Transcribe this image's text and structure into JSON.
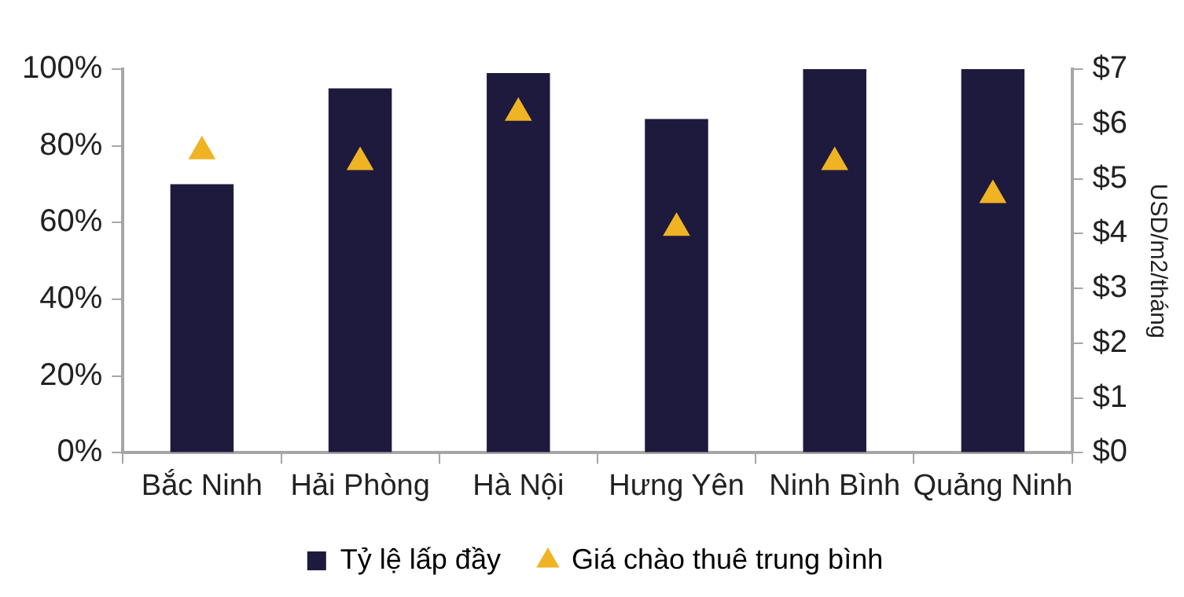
{
  "chart_data": {
    "type": "bar",
    "categories": [
      "Bắc Ninh",
      "Hải Phòng",
      "Hà Nội",
      "Hưng Yên",
      "Ninh Bình",
      "Quảng Ninh"
    ],
    "series": [
      {
        "name": "Tỷ lệ lấp đầy",
        "color": "#1e1a3e",
        "values": [
          70,
          95,
          99,
          87,
          100,
          100
        ]
      },
      {
        "name": "Giá chào thuê trung bình",
        "type": "scatter",
        "axis": "y2",
        "color": "#f0b323",
        "marker": "triangle",
        "values": [
          5.5,
          5.3,
          6.2,
          4.1,
          5.3,
          4.7
        ]
      }
    ],
    "ylim": [
      0,
      100
    ],
    "yticks": [
      {
        "value": 0,
        "label": "0%"
      },
      {
        "value": 20,
        "label": "20%"
      },
      {
        "value": 40,
        "label": "40%"
      },
      {
        "value": 60,
        "label": "60%"
      },
      {
        "value": 80,
        "label": "80%"
      },
      {
        "value": 100,
        "label": "100%"
      }
    ],
    "y2lim": [
      0,
      7
    ],
    "y2ticks": [
      {
        "value": 0,
        "label": "$0"
      },
      {
        "value": 1,
        "label": "$1"
      },
      {
        "value": 2,
        "label": "$2"
      },
      {
        "value": 3,
        "label": "$3"
      },
      {
        "value": 4,
        "label": "$4"
      },
      {
        "value": 5,
        "label": "$5"
      },
      {
        "value": 6,
        "label": "$6"
      },
      {
        "value": 7,
        "label": "$7"
      }
    ],
    "y2label": "USD/m2/tháng",
    "grid": false,
    "legend": "bottom"
  }
}
